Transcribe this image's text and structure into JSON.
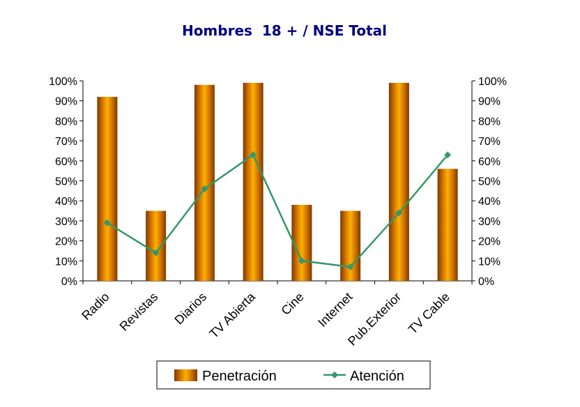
{
  "chart_data": {
    "type": "bar",
    "title": "Hombres  18 + / NSE Total",
    "categories": [
      "Radio",
      "Revistas",
      "Diarios",
      "TV Abierta",
      "Cine",
      "Internet",
      "Pub.Exterior",
      "TV Cable"
    ],
    "series": [
      {
        "name": "Penetración",
        "type": "bar",
        "axis": "left",
        "color": "#FF9900",
        "values": [
          92,
          35,
          98,
          99,
          38,
          35,
          99,
          56
        ]
      },
      {
        "name": "Atención",
        "type": "line",
        "axis": "right",
        "color": "#339966",
        "values": [
          29,
          14,
          46,
          63,
          10,
          7,
          34,
          63
        ]
      }
    ],
    "y_ticks": [
      "0%",
      "10%",
      "20%",
      "30%",
      "40%",
      "50%",
      "60%",
      "70%",
      "80%",
      "90%",
      "100%"
    ],
    "ylim": [
      0,
      100
    ],
    "y2lim": [
      0,
      100
    ],
    "grid": false,
    "legend_position": "bottom"
  }
}
